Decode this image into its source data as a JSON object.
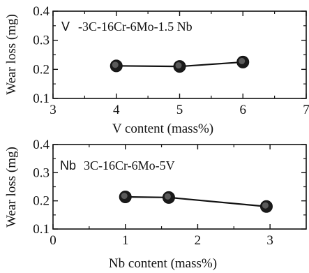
{
  "chart_data": [
    {
      "type": "line",
      "x": [
        4,
        5,
        6
      ],
      "series": [
        {
          "values": [
            0.212,
            0.21,
            0.225
          ]
        }
      ],
      "xlabel": "V content (mass%)",
      "ylabel": "Wear loss (mg)",
      "xlim": [
        3,
        7
      ],
      "ylim": [
        0.1,
        0.4
      ],
      "x_ticks": [
        "3",
        "4",
        "5",
        "6",
        "7"
      ],
      "y_ticks": [
        "0.1",
        "0.2",
        "0.3",
        "0.4"
      ],
      "annotation_symbol": "V",
      "annotation_text": "-3C-16Cr-6Mo-1.5 Nb",
      "grid": false
    },
    {
      "type": "line",
      "x": [
        1.0,
        1.6,
        2.95
      ],
      "series": [
        {
          "values": [
            0.214,
            0.212,
            0.18
          ]
        }
      ],
      "xlabel": "Nb content (mass%)",
      "ylabel": "Wear loss (mg)",
      "xlim": [
        0,
        3.5
      ],
      "ylim": [
        0.1,
        0.4
      ],
      "x_ticks": [
        "0",
        "1",
        "2",
        "3"
      ],
      "y_ticks": [
        "0.1",
        "0.2",
        "0.3",
        "0.4"
      ],
      "annotation_symbol": "Nb",
      "annotation_text": "3C-16Cr-6Mo-5V",
      "grid": false
    }
  ]
}
